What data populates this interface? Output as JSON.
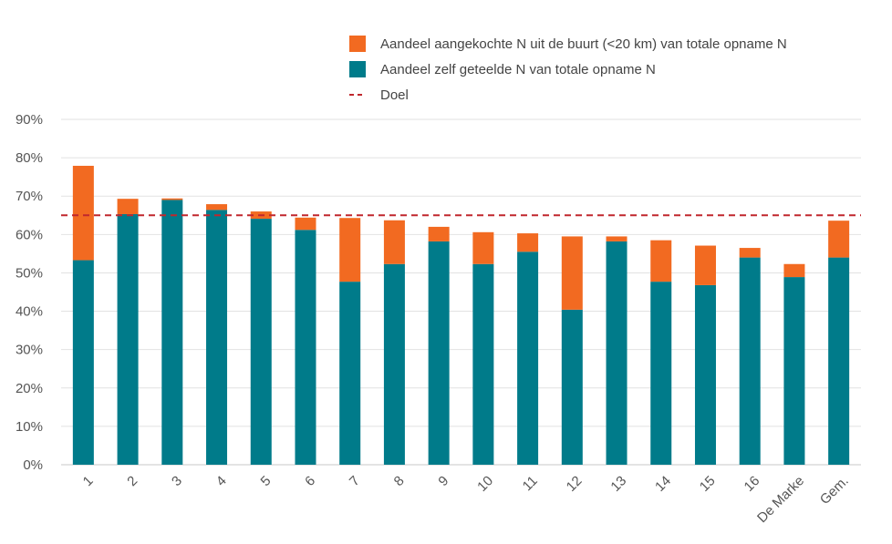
{
  "chart_data": {
    "type": "bar",
    "stacked": true,
    "categories": [
      "1",
      "2",
      "3",
      "4",
      "5",
      "6",
      "7",
      "8",
      "9",
      "10",
      "11",
      "12",
      "13",
      "14",
      "15",
      "16",
      "De Marke",
      "Gem."
    ],
    "series": [
      {
        "name": "Aandeel zelf geteelde N van totale opname N",
        "color": "#007b8a",
        "values": [
          53.3,
          65.3,
          69.0,
          66.4,
          64.1,
          61.2,
          47.7,
          52.3,
          58.2,
          52.3,
          55.5,
          40.4,
          58.2,
          47.7,
          46.8,
          54.0,
          48.9,
          54.0
        ]
      },
      {
        "name": "Aandeel aangekochte N uit de buurt (<20 km) van totale opname N",
        "color": "#f26a21",
        "values": [
          24.6,
          4.0,
          0.4,
          1.5,
          1.9,
          3.2,
          16.6,
          11.4,
          3.8,
          8.3,
          4.8,
          19.1,
          1.3,
          10.8,
          10.3,
          2.5,
          3.4,
          9.6
        ]
      }
    ],
    "target": {
      "name": "Doel",
      "value": 65,
      "color": "#c0272d"
    },
    "legend": [
      {
        "label": "Aandeel aangekochte N uit de buurt (<20 km) van totale opname N",
        "color": "#f26a21",
        "marker": "square"
      },
      {
        "label": "Aandeel zelf geteelde N van totale opname N",
        "color": "#007b8a",
        "marker": "square"
      },
      {
        "label": "Doel",
        "color": "#c0272d",
        "marker": "dash"
      }
    ],
    "legend_position": "top-right",
    "y_ticks": [
      "0%",
      "10%",
      "20%",
      "30%",
      "40%",
      "50%",
      "60%",
      "70%",
      "80%",
      "90%"
    ],
    "ylim": [
      0,
      90
    ],
    "grid": true,
    "title": "",
    "xlabel": "",
    "ylabel": ""
  }
}
